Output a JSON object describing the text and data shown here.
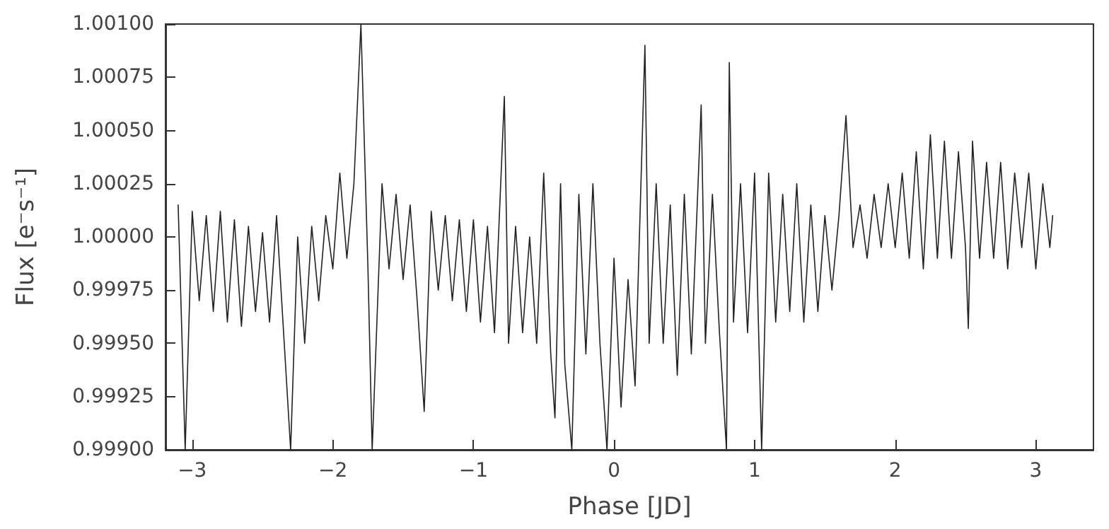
{
  "chart_data": {
    "type": "line",
    "xlabel": "Phase [JD]",
    "ylabel": "Flux [e⁻s⁻¹]",
    "xlim": [
      -3.19,
      3.41
    ],
    "xticks": [
      {
        "value": -3,
        "label": "−3"
      },
      {
        "value": -2,
        "label": "−2"
      },
      {
        "value": -1,
        "label": "−1"
      },
      0,
      1,
      2,
      3
    ],
    "ylim": [
      0.999,
      1.001
    ],
    "yticks": [
      {
        "value": 0.999,
        "label": "0.99900"
      },
      {
        "value": 0.99925,
        "label": "0.99925"
      },
      {
        "value": 0.9995,
        "label": "0.99950"
      },
      {
        "value": 0.99975,
        "label": "0.99975"
      },
      {
        "value": 1,
        "label": "1.00000"
      },
      {
        "value": 1.00025,
        "label": "1.00025"
      },
      {
        "value": 1.0005,
        "label": "1.00050"
      },
      {
        "value": 1.00075,
        "label": "1.00075"
      },
      {
        "value": 1.001,
        "label": "1.00100"
      }
    ],
    "series": [
      {
        "color": "#222222",
        "x": [
          -3.1,
          -3.05,
          -3.0,
          -2.95,
          -2.9,
          -2.85,
          -2.8,
          -2.75,
          -2.7,
          -2.65,
          -2.6,
          -2.55,
          -2.5,
          -2.45,
          -2.4,
          -2.35,
          -2.3,
          -2.25,
          -2.2,
          -2.15,
          -2.1,
          -2.05,
          -2.0,
          -1.95,
          -1.9,
          -1.85,
          -1.8,
          -1.75,
          -1.72,
          -1.65,
          -1.6,
          -1.55,
          -1.5,
          -1.45,
          -1.4,
          -1.35,
          -1.3,
          -1.25,
          -1.2,
          -1.15,
          -1.1,
          -1.05,
          -1.0,
          -0.95,
          -0.9,
          -0.85,
          -0.78,
          -0.75,
          -0.7,
          -0.65,
          -0.6,
          -0.55,
          -0.5,
          -0.45,
          -0.42,
          -0.38,
          -0.35,
          -0.3,
          -0.25,
          -0.2,
          -0.15,
          -0.1,
          -0.05,
          0.0,
          0.05,
          0.1,
          0.15,
          0.22,
          0.25,
          0.3,
          0.35,
          0.4,
          0.45,
          0.5,
          0.55,
          0.62,
          0.65,
          0.7,
          0.75,
          0.8,
          0.82,
          0.85,
          0.9,
          0.95,
          1.0,
          1.05,
          1.1,
          1.15,
          1.2,
          1.25,
          1.3,
          1.35,
          1.4,
          1.45,
          1.5,
          1.55,
          1.6,
          1.65,
          1.7,
          1.75,
          1.8,
          1.85,
          1.9,
          1.95,
          2.0,
          2.05,
          2.1,
          2.15,
          2.2,
          2.25,
          2.3,
          2.35,
          2.4,
          2.45,
          2.5,
          2.52,
          2.55,
          2.6,
          2.65,
          2.7,
          2.75,
          2.8,
          2.85,
          2.9,
          2.95,
          3.0,
          3.05,
          3.1,
          3.12
        ],
        "values": [
          1.00015,
          0.999,
          1.00012,
          0.9997,
          1.0001,
          0.99965,
          1.00012,
          0.9996,
          1.00008,
          0.99958,
          1.00005,
          0.99965,
          1.00002,
          0.9996,
          1.0001,
          0.99955,
          0.999,
          1.0,
          0.9995,
          1.00005,
          0.9997,
          1.0001,
          0.99985,
          1.0003,
          0.9999,
          1.00025,
          1.001,
          0.99985,
          0.999,
          1.00025,
          0.99985,
          1.0002,
          0.9998,
          1.00015,
          0.9997,
          0.99918,
          1.00012,
          0.99975,
          1.0001,
          0.9997,
          1.00008,
          0.99965,
          1.00008,
          0.9996,
          1.00005,
          0.99955,
          1.00066,
          0.9995,
          1.00005,
          0.99955,
          1.0,
          0.9995,
          1.0003,
          0.99945,
          0.99915,
          1.00025,
          0.9994,
          0.999,
          1.0002,
          0.99945,
          1.00025,
          0.9995,
          0.999,
          0.9999,
          0.9992,
          0.9998,
          0.9993,
          1.0009,
          0.9995,
          1.00025,
          0.9995,
          1.00015,
          0.99935,
          1.0002,
          0.99945,
          1.00062,
          0.9995,
          1.0002,
          0.99955,
          0.999,
          1.00082,
          0.9996,
          1.00025,
          0.99955,
          1.0003,
          0.999,
          1.0003,
          0.9996,
          1.0002,
          0.99965,
          1.00025,
          0.9996,
          1.00015,
          0.99965,
          1.0001,
          0.99975,
          1.0001,
          1.00057,
          0.99995,
          1.00015,
          0.9999,
          1.0002,
          0.99995,
          1.00025,
          0.99995,
          1.0003,
          0.9999,
          1.0004,
          0.99985,
          1.00048,
          0.9999,
          1.00045,
          0.9999,
          1.0004,
          0.99995,
          0.99957,
          1.00045,
          0.9999,
          1.00035,
          0.9999,
          1.00035,
          0.99985,
          1.0003,
          0.99995,
          1.0003,
          0.99985,
          1.00025,
          0.99995,
          1.0001
        ]
      }
    ]
  }
}
